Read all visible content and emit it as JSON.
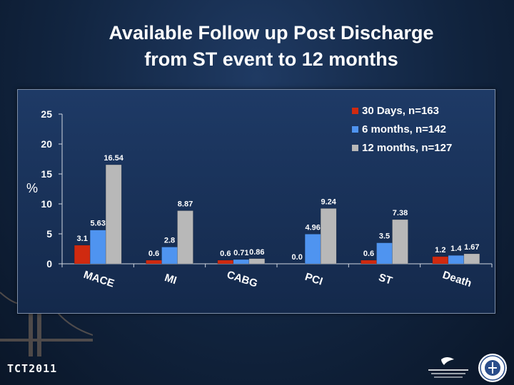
{
  "title_line1": "Available Follow up Post Discharge",
  "title_line2": "from ST event to 12 months",
  "footer": {
    "logo_text": "TCT2011"
  },
  "chart_data": {
    "type": "bar",
    "ylabel": "%",
    "ylim": [
      0,
      25
    ],
    "yticks": [
      0,
      5,
      10,
      15,
      20,
      25
    ],
    "categories": [
      "MACE",
      "MI",
      "CABG",
      "PCI",
      "ST",
      "Death"
    ],
    "legend_position": "top-right",
    "series": [
      {
        "name": "30 Days, n=163",
        "color": "#d02a10",
        "values": [
          3.1,
          0.6,
          0.6,
          0.0,
          0.6,
          1.2
        ],
        "labels": [
          "3.1",
          "0.6",
          "0.6",
          "0.0",
          "0.6",
          "1.2"
        ]
      },
      {
        "name": "6 months, n=142",
        "color": "#4f94f0",
        "values": [
          5.63,
          2.8,
          0.71,
          4.96,
          3.5,
          1.4
        ],
        "labels": [
          "5.63",
          "2.8",
          "0.71",
          "4.96",
          "3.5",
          "1.4"
        ]
      },
      {
        "name": "12 months, n=127",
        "color": "#b8b8b8",
        "values": [
          16.54,
          8.87,
          0.86,
          9.24,
          7.38,
          1.67
        ],
        "labels": [
          "16.54",
          "8.87",
          "0.86",
          "9.24",
          "7.38",
          "1.67"
        ]
      }
    ]
  }
}
